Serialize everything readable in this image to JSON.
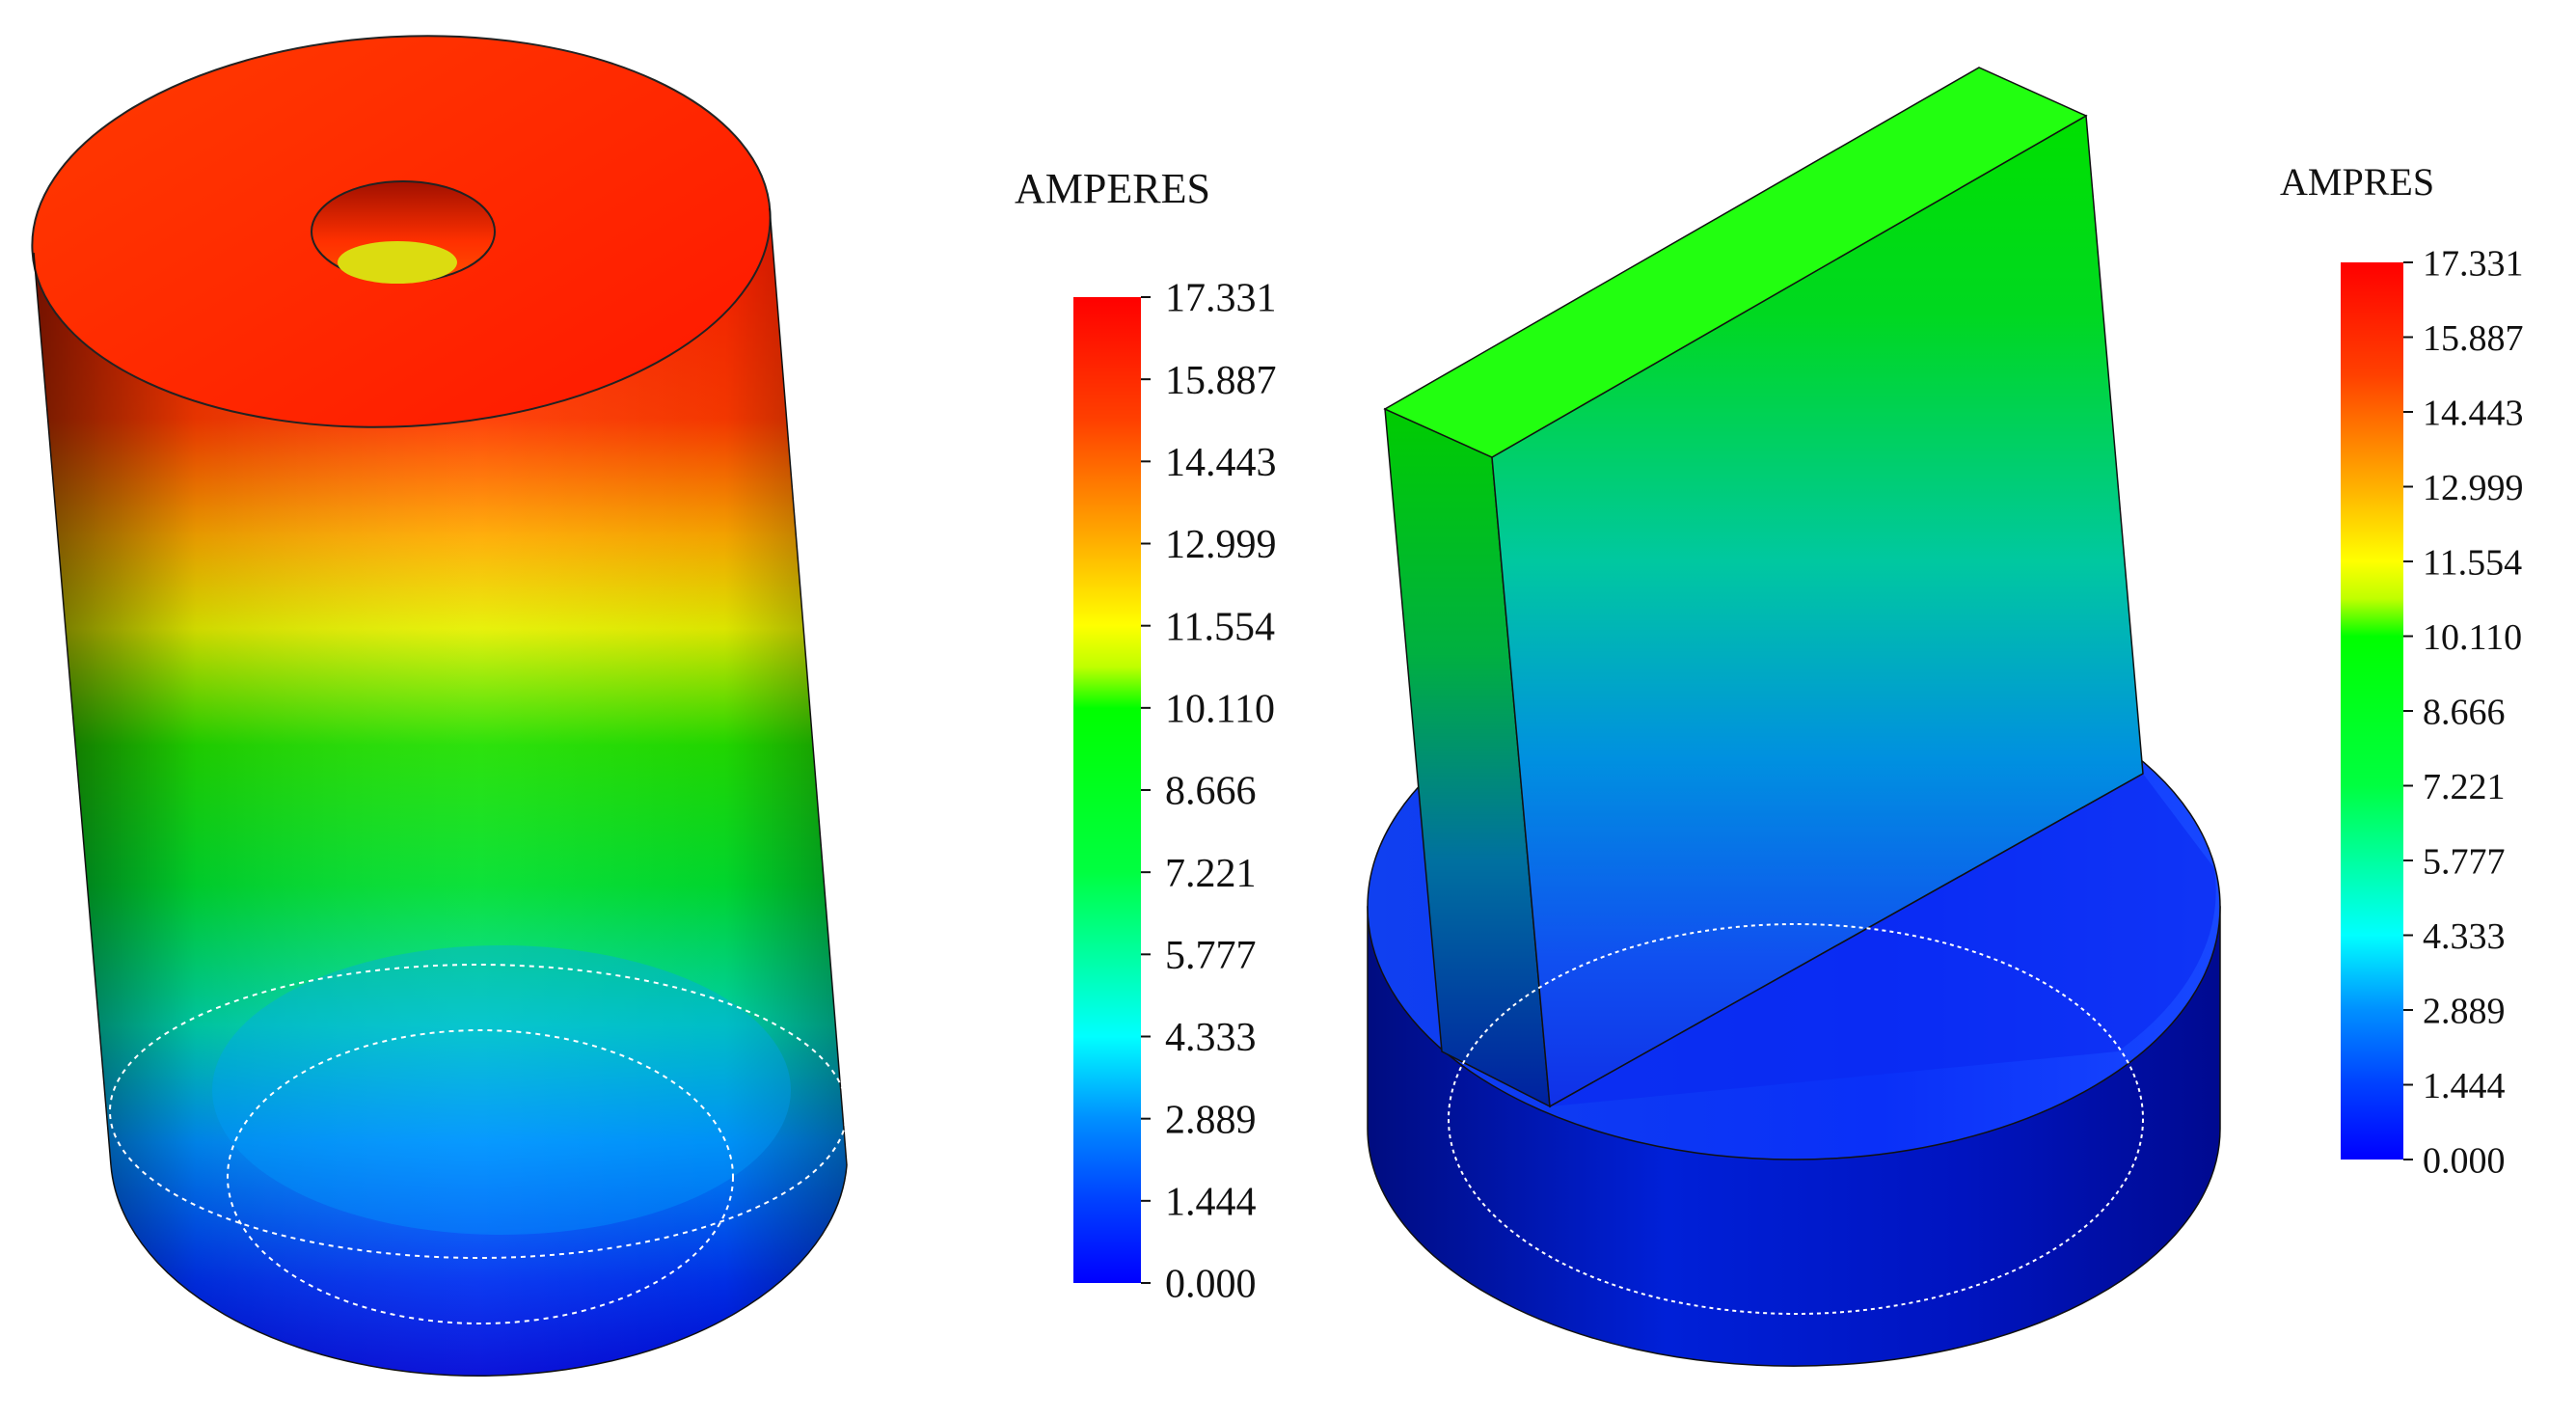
{
  "colormap": [
    "#0000ff",
    "#0080ff",
    "#00ffff",
    "#00ff80",
    "#00ff00",
    "#80ff00",
    "#ffff00",
    "#ff8000",
    "#ff0000"
  ],
  "left_panel": {
    "legend": {
      "title": "AMPERES",
      "ticks": [
        "17.331",
        "15.887",
        "14.443",
        "12.999",
        "11.554",
        "10.110",
        "8.666",
        "7.221",
        "5.777",
        "4.333",
        "2.889",
        "1.444",
        "0.000"
      ]
    }
  },
  "right_panel": {
    "legend": {
      "title": "AMPRES",
      "ticks": [
        "17.331",
        "15.887",
        "14.443",
        "12.999",
        "11.554",
        "10.110",
        "8.666",
        "7.221",
        "5.777",
        "4.333",
        "2.889",
        "1.444",
        "0.000"
      ]
    }
  }
}
